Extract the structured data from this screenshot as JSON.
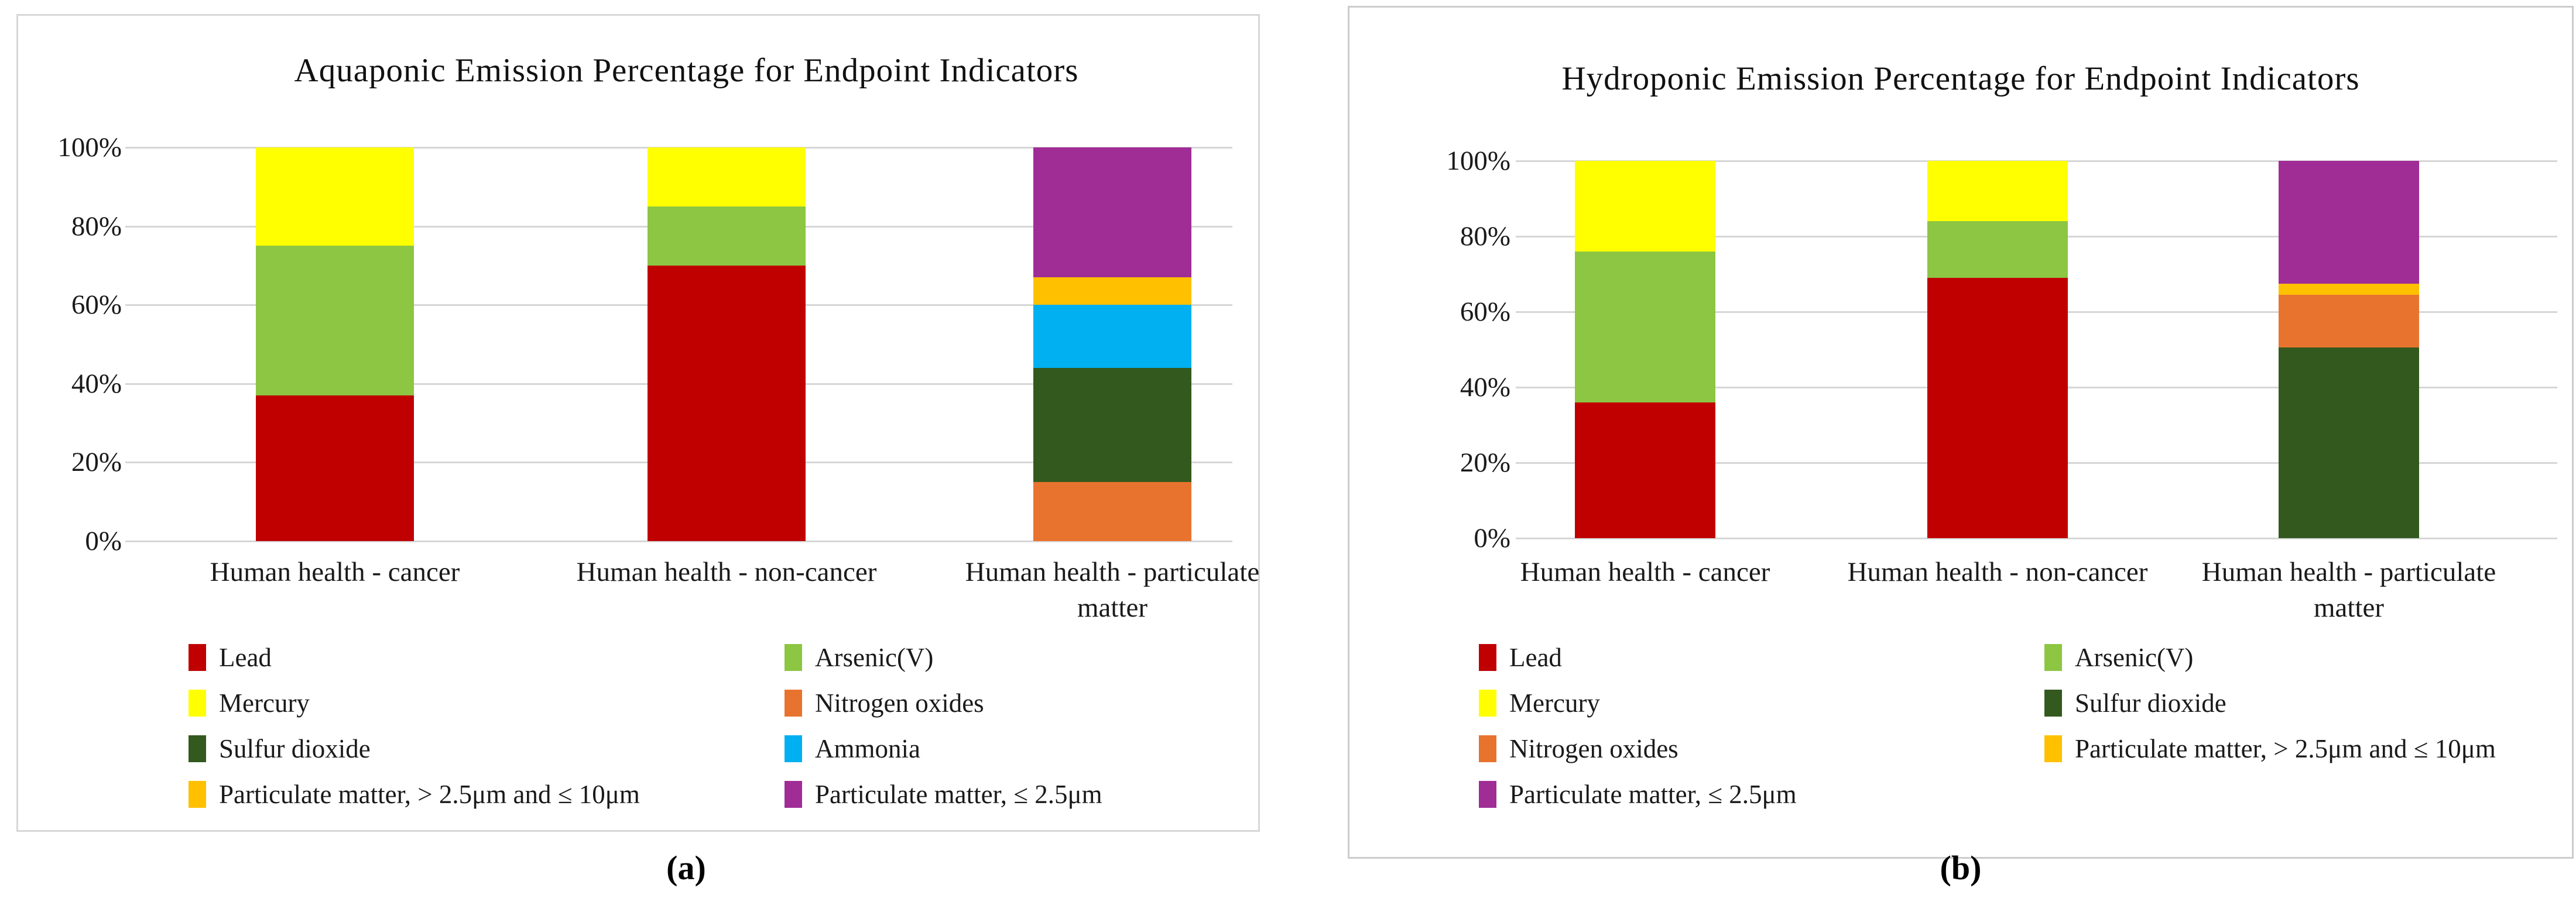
{
  "panels": [
    {
      "caption": "(a)",
      "title": "Aquaponic Emission Percentage for Endpoint Indicators",
      "legend_columns": [
        [
          {
            "label": "Lead",
            "color": "#C00000"
          },
          {
            "label": "Mercury",
            "color": "#FFFF00"
          },
          {
            "label": "Sulfur dioxide",
            "color": "#33591E"
          },
          {
            "label": "Particulate matter, > 2.5μm and ≤ 10μm",
            "color": "#FFC000"
          }
        ],
        [
          {
            "label": "Arsenic(V)",
            "color": "#8CC642"
          },
          {
            "label": "Nitrogen oxides",
            "color": "#E8732E"
          },
          {
            "label": "Ammonia",
            "color": "#00B0F0"
          },
          {
            "label": "Particulate matter, ≤ 2.5μm",
            "color": "#A02C96"
          }
        ]
      ]
    },
    {
      "caption": "(b)",
      "title": "Hydroponic Emission Percentage for Endpoint Indicators",
      "legend_columns": [
        [
          {
            "label": "Lead",
            "color": "#C00000"
          },
          {
            "label": "Mercury",
            "color": "#FFFF00"
          },
          {
            "label": "Nitrogen oxides",
            "color": "#E8732E"
          },
          {
            "label": "Particulate matter, ≤ 2.5μm",
            "color": "#A02C96"
          }
        ],
        [
          {
            "label": "Arsenic(V)",
            "color": "#8CC642"
          },
          {
            "label": "Sulfur dioxide",
            "color": "#33591E"
          },
          {
            "label": "Particulate matter, > 2.5μm and ≤ 10μm",
            "color": "#FFC000"
          }
        ]
      ]
    }
  ],
  "chart_data": [
    {
      "type": "bar",
      "stacked": true,
      "units": "percent",
      "title": "Aquaponic Emission Percentage for Endpoint Indicators",
      "categories": [
        "Human health - cancer",
        "Human health - non-cancer",
        "Human health - particulate matter"
      ],
      "series": [
        {
          "name": "Lead",
          "color": "#C00000",
          "values": [
            37,
            70,
            0
          ]
        },
        {
          "name": "Arsenic(V)",
          "color": "#8CC642",
          "values": [
            38,
            15,
            0
          ]
        },
        {
          "name": "Mercury",
          "color": "#FFFF00",
          "values": [
            25,
            15,
            0
          ]
        },
        {
          "name": "Nitrogen oxides",
          "color": "#E8732E",
          "values": [
            0,
            0,
            15
          ]
        },
        {
          "name": "Sulfur dioxide",
          "color": "#33591E",
          "values": [
            0,
            0,
            29
          ]
        },
        {
          "name": "Ammonia",
          "color": "#00B0F0",
          "values": [
            0,
            0,
            16
          ]
        },
        {
          "name": "Particulate matter, > 2.5μm and ≤ 10μm",
          "color": "#FFC000",
          "values": [
            0,
            0,
            7
          ]
        },
        {
          "name": "Particulate matter, ≤ 2.5μm",
          "color": "#A02C96",
          "values": [
            0,
            0,
            33
          ]
        }
      ],
      "ylim": [
        0,
        100
      ],
      "y_ticks": [
        "100%",
        "80%",
        "60%",
        "40%",
        "20%",
        "0%"
      ],
      "grid": true,
      "legend_position": "bottom"
    },
    {
      "type": "bar",
      "stacked": true,
      "units": "percent",
      "title": "Hydroponic Emission Percentage for Endpoint Indicators",
      "categories": [
        "Human health - cancer",
        "Human health - non-cancer",
        "Human health - particulate matter"
      ],
      "series": [
        {
          "name": "Lead",
          "color": "#C00000",
          "values": [
            36,
            69,
            0
          ]
        },
        {
          "name": "Arsenic(V)",
          "color": "#8CC642",
          "values": [
            40,
            15,
            0
          ]
        },
        {
          "name": "Mercury",
          "color": "#FFFF00",
          "values": [
            24,
            16,
            0
          ]
        },
        {
          "name": "Sulfur dioxide",
          "color": "#33591E",
          "values": [
            0,
            0,
            50.5
          ]
        },
        {
          "name": "Nitrogen oxides",
          "color": "#E8732E",
          "values": [
            0,
            0,
            14
          ]
        },
        {
          "name": "Particulate matter, > 2.5μm and ≤ 10μm",
          "color": "#FFC000",
          "values": [
            0,
            0,
            3
          ]
        },
        {
          "name": "Particulate matter, ≤ 2.5μm",
          "color": "#A02C96",
          "values": [
            0,
            0,
            32.5
          ]
        }
      ],
      "ylim": [
        0,
        100
      ],
      "y_ticks": [
        "100%",
        "80%",
        "60%",
        "40%",
        "20%",
        "0%"
      ],
      "grid": true,
      "legend_position": "bottom"
    }
  ]
}
